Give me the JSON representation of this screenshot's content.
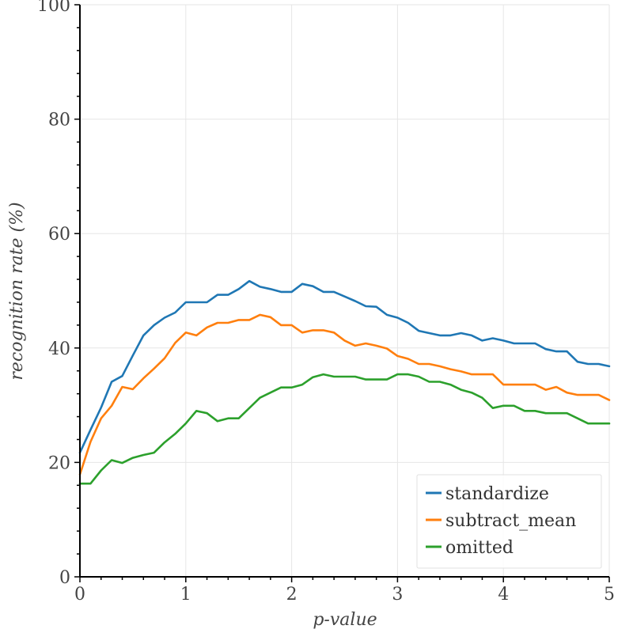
{
  "chart_data": {
    "type": "line",
    "title": "",
    "xlabel": "p-value",
    "ylabel": "recognition rate (%)",
    "xlim": [
      0,
      5
    ],
    "ylim": [
      0,
      100
    ],
    "xticks": [
      0,
      1,
      2,
      3,
      4,
      5
    ],
    "yticks": [
      0,
      20,
      40,
      60,
      80,
      100
    ],
    "grid": true,
    "legend_position": "bottom-right",
    "x": [
      0,
      0.1,
      0.2,
      0.3,
      0.4,
      0.5,
      0.6,
      0.7,
      0.8,
      0.9,
      1.0,
      1.1,
      1.2,
      1.3,
      1.4,
      1.5,
      1.6,
      1.7,
      1.8,
      1.9,
      2.0,
      2.1,
      2.2,
      2.3,
      2.4,
      2.5,
      2.6,
      2.7,
      2.8,
      2.9,
      3.0,
      3.1,
      3.2,
      3.3,
      3.4,
      3.5,
      3.6,
      3.7,
      3.8,
      3.9,
      4.0,
      4.1,
      4.2,
      4.3,
      4.4,
      4.5,
      4.6,
      4.7,
      4.8,
      4.9,
      5.0
    ],
    "series": [
      {
        "name": "standardize",
        "color": "#1f77b4",
        "values": [
          21.7,
          25.7,
          29.6,
          34.1,
          35.1,
          38.7,
          42.2,
          44.0,
          45.3,
          46.2,
          48.0,
          48.0,
          48.0,
          49.3,
          49.3,
          50.3,
          51.7,
          50.7,
          50.3,
          49.8,
          49.8,
          51.2,
          50.8,
          49.8,
          49.8,
          49.0,
          48.2,
          47.3,
          47.2,
          45.8,
          45.3,
          44.4,
          43.0,
          42.6,
          42.2,
          42.2,
          42.6,
          42.2,
          41.3,
          41.7,
          41.3,
          40.8,
          40.8,
          40.8,
          39.8,
          39.4,
          39.4,
          37.6,
          37.2,
          37.2,
          36.8
        ]
      },
      {
        "name": "subtract_mean",
        "color": "#ff7f0e",
        "values": [
          17.9,
          23.6,
          27.7,
          29.9,
          33.2,
          32.8,
          34.7,
          36.4,
          38.2,
          40.9,
          42.7,
          42.2,
          43.6,
          44.4,
          44.4,
          44.9,
          44.9,
          45.8,
          45.4,
          44.0,
          44.0,
          42.7,
          43.1,
          43.1,
          42.7,
          41.3,
          40.4,
          40.8,
          40.4,
          39.9,
          38.6,
          38.1,
          37.2,
          37.2,
          36.8,
          36.3,
          35.9,
          35.4,
          35.4,
          35.4,
          33.6,
          33.6,
          33.6,
          33.6,
          32.7,
          33.2,
          32.2,
          31.8,
          31.8,
          31.8,
          30.9
        ]
      },
      {
        "name": "omitted",
        "color": "#2ca02c",
        "values": [
          16.3,
          16.3,
          18.6,
          20.4,
          19.9,
          20.8,
          21.3,
          21.7,
          23.5,
          25.0,
          26.8,
          29.0,
          28.6,
          27.2,
          27.7,
          27.7,
          29.5,
          31.3,
          32.2,
          33.1,
          33.1,
          33.6,
          34.9,
          35.4,
          35.0,
          35.0,
          35.0,
          34.5,
          34.5,
          34.5,
          35.4,
          35.4,
          35.0,
          34.1,
          34.1,
          33.6,
          32.7,
          32.2,
          31.3,
          29.5,
          29.9,
          29.9,
          29.0,
          29.0,
          28.6,
          28.6,
          28.6,
          27.7,
          26.8,
          26.8,
          26.8
        ]
      }
    ]
  }
}
